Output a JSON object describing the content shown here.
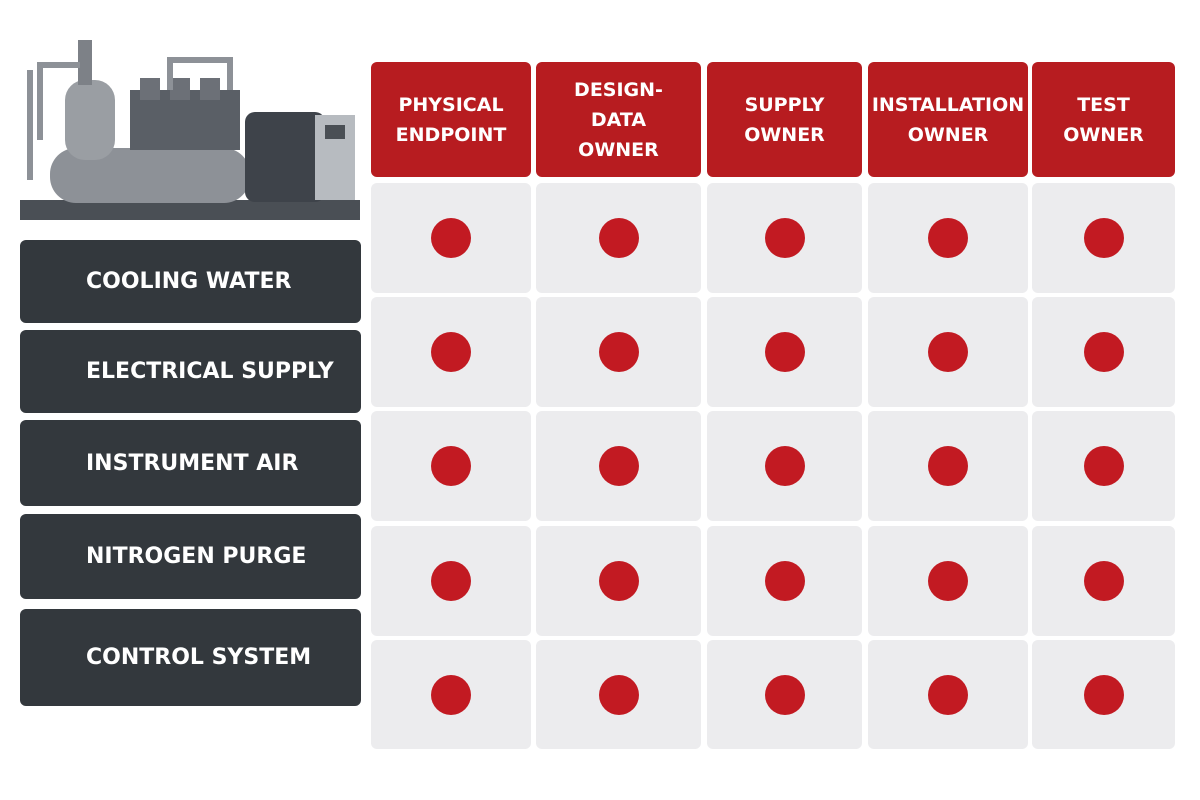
{
  "columns": [
    "PHYSICAL ENDPOINT",
    "DESIGN-DATA OWNER",
    "SUPPLY OWNER",
    "INSTALLATION OWNER",
    "TEST OWNER"
  ],
  "rows": [
    "COOLING WATER",
    "ELECTRICAL SUPPLY",
    "INSTRUMENT AIR",
    "NITROGEN PURGE",
    "CONTROL SYSTEM"
  ]
}
